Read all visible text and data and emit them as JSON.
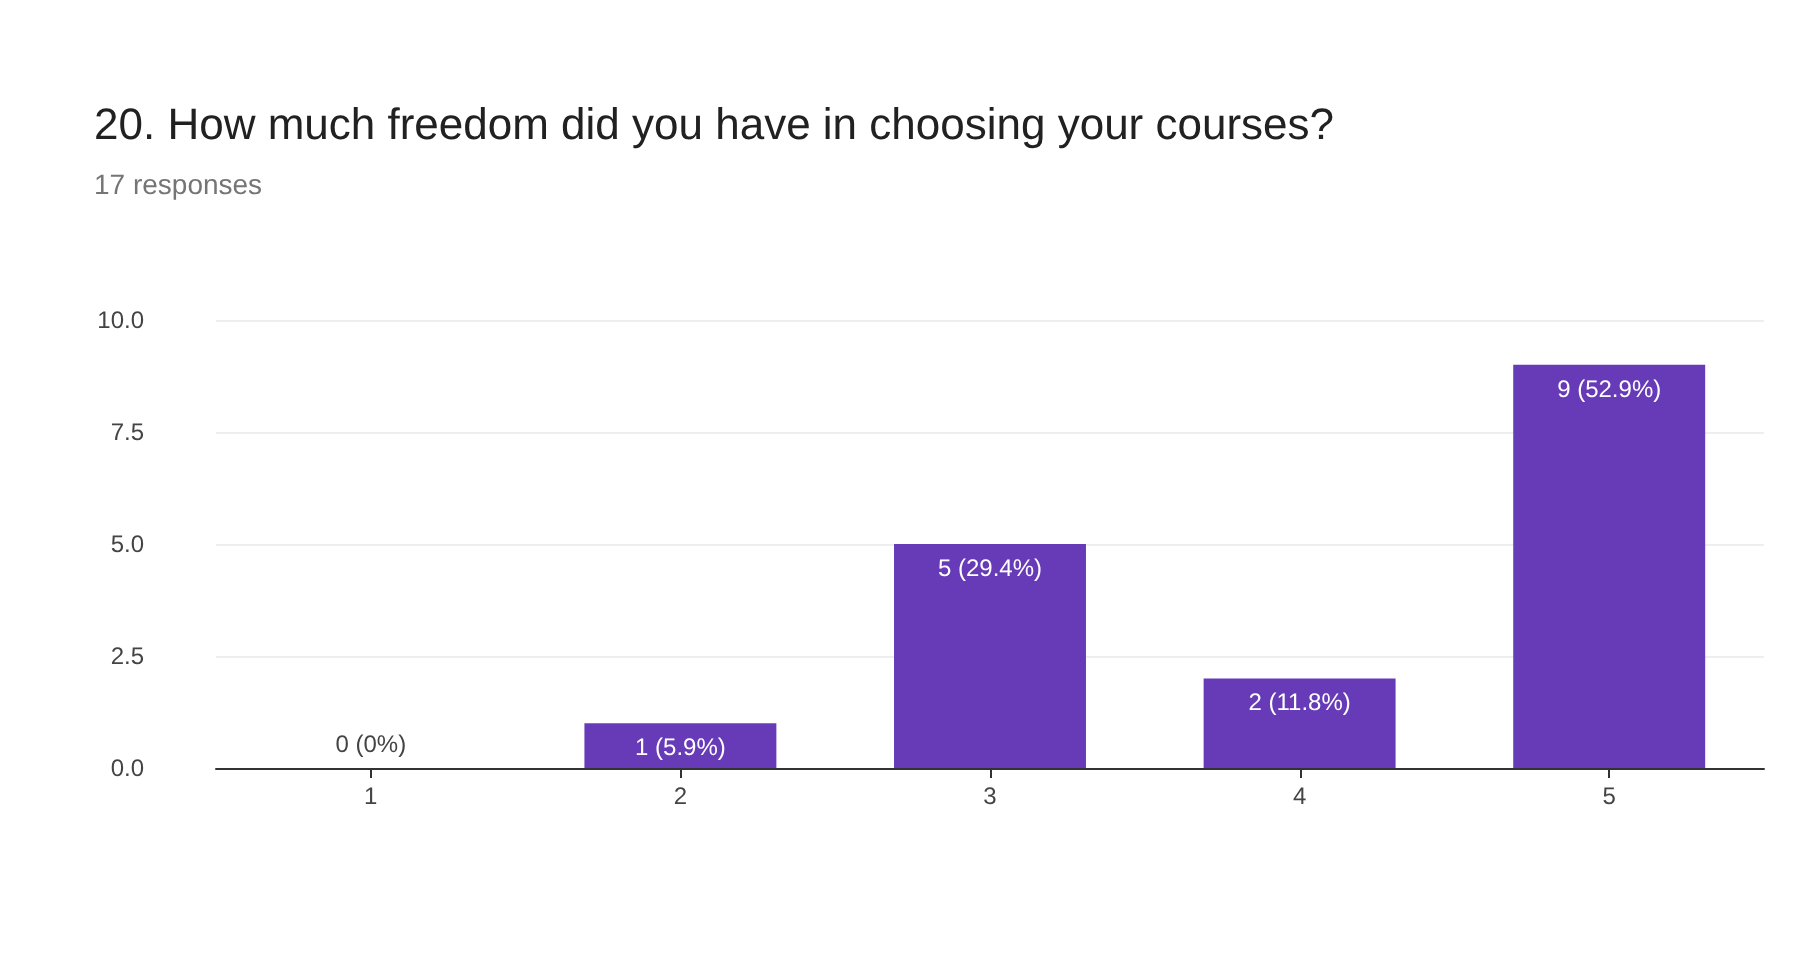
{
  "chart_data": {
    "type": "bar",
    "title": "20. How much freedom did you have in choosing your courses?",
    "subtitle": "17 responses",
    "categories": [
      "1",
      "2",
      "3",
      "4",
      "5"
    ],
    "values": [
      0,
      1,
      5,
      2,
      9
    ],
    "value_labels": [
      "0 (0%)",
      "1 (5.9%)",
      "5 (29.4%)",
      "2 (11.8%)",
      "9 (52.9%)"
    ],
    "color": "#673ab7",
    "ylim": [
      0,
      10
    ],
    "yticks": [
      {
        "value": 0,
        "label": "0.0"
      },
      {
        "value": 2.5,
        "label": "2.5"
      },
      {
        "value": 5,
        "label": "5.0"
      },
      {
        "value": 7.5,
        "label": "7.5"
      },
      {
        "value": 10,
        "label": "10.0"
      }
    ],
    "grid": "y"
  }
}
